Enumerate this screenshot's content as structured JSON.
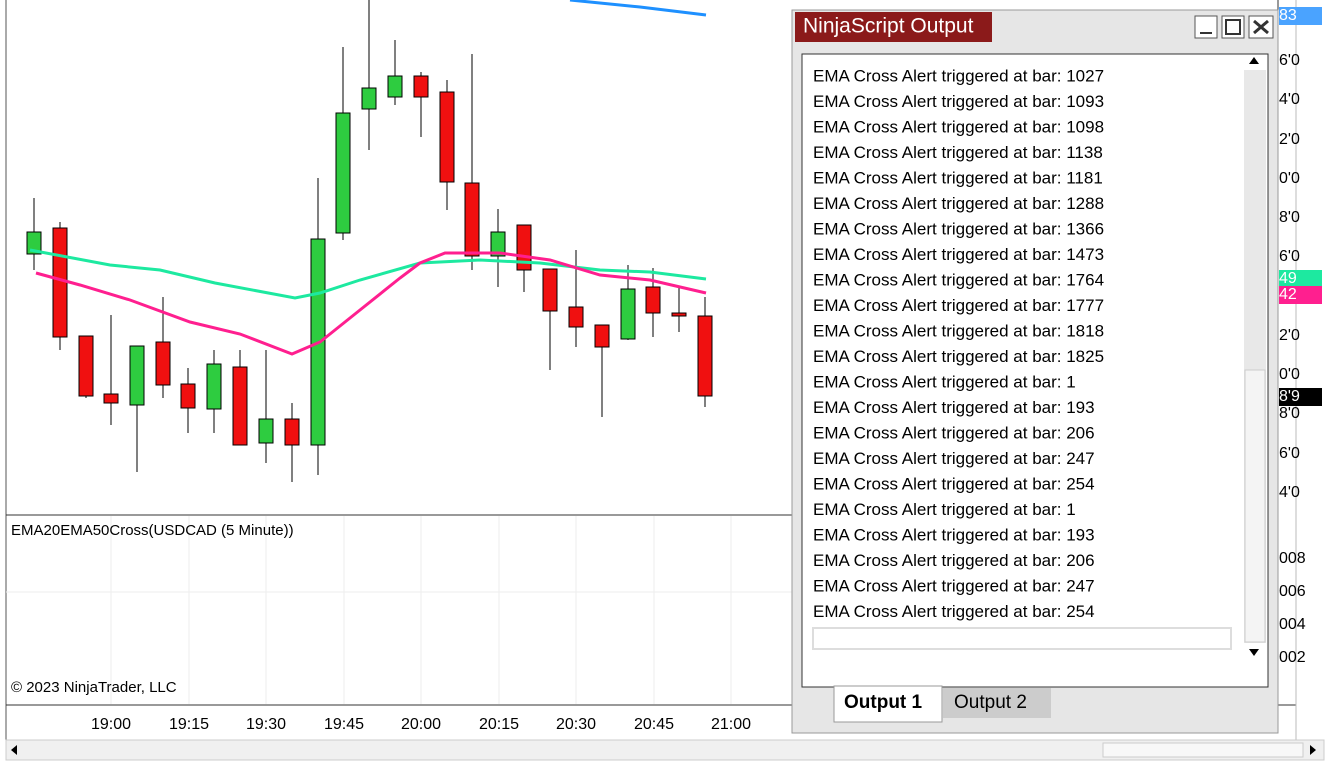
{
  "chart": {
    "indicator_label": "EMA20EMA50Cross(USDCAD (5 Minute))",
    "copyright": "© 2023 NinjaTrader, LLC",
    "time_labels": [
      "19:00",
      "19:15",
      "19:30",
      "19:45",
      "20:00",
      "20:15",
      "20:30",
      "20:45",
      "21:00"
    ],
    "price_labels": [
      "6'0",
      "4'0",
      "2'0",
      "0'0",
      "8'0",
      "6'0",
      "2'0",
      "0'0",
      "8'0",
      "6'0",
      "4'0"
    ],
    "price_flags": [
      "83",
      "49",
      "42",
      "8'9"
    ],
    "lower_labels": [
      "008",
      "006",
      "004",
      "002"
    ]
  },
  "output_window": {
    "title": "NinjaScript Output",
    "lines": [
      "EMA Cross Alert triggered at bar: 1027",
      "EMA Cross Alert triggered at bar: 1093",
      "EMA Cross Alert triggered at bar: 1098",
      "EMA Cross Alert triggered at bar: 1138",
      "EMA Cross Alert triggered at bar: 1181",
      "EMA Cross Alert triggered at bar: 1288",
      "EMA Cross Alert triggered at bar: 1366",
      "EMA Cross Alert triggered at bar: 1473",
      "EMA Cross Alert triggered at bar: 1764",
      "EMA Cross Alert triggered at bar: 1777",
      "EMA Cross Alert triggered at bar: 1818",
      "EMA Cross Alert triggered at bar: 1825",
      "EMA Cross Alert triggered at bar: 1",
      "EMA Cross Alert triggered at bar: 193",
      "EMA Cross Alert triggered at bar: 206",
      "EMA Cross Alert triggered at bar: 247",
      "EMA Cross Alert triggered at bar: 254",
      "EMA Cross Alert triggered at bar: 1",
      "EMA Cross Alert triggered at bar: 193",
      "EMA Cross Alert triggered at bar: 206",
      "EMA Cross Alert triggered at bar: 247",
      "EMA Cross Alert triggered at bar: 254"
    ],
    "tabs": [
      "Output 1",
      "Output 2"
    ]
  }
}
